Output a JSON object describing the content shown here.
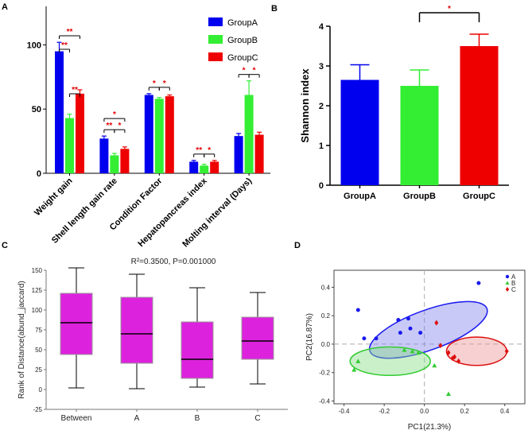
{
  "chart_data": [
    {
      "panel": "A",
      "type": "bar",
      "categories": [
        "Weight gain",
        "Shell length gain rate",
        "Condition Factor",
        "Hepatopancreas index",
        "Molting interval (Days)"
      ],
      "series": [
        {
          "name": "GroupA",
          "color": "#0000ee",
          "values": [
            95,
            27,
            61,
            9,
            29
          ],
          "errors": [
            7,
            2,
            1,
            1,
            2
          ]
        },
        {
          "name": "GroupB",
          "color": "#33ee33",
          "values": [
            43,
            14,
            58,
            6,
            61
          ],
          "errors": [
            3,
            1.5,
            1,
            1,
            11
          ]
        },
        {
          "name": "GroupC",
          "color": "#ee0000",
          "values": [
            62,
            19,
            60,
            9,
            30
          ],
          "errors": [
            3,
            1.5,
            1,
            1,
            2
          ]
        }
      ],
      "ylim": [
        0,
        130
      ],
      "yticks": [
        "0",
        "50",
        "100"
      ],
      "significance": [
        {
          "category": 0,
          "from": 0,
          "to": 1,
          "label": "**"
        },
        {
          "category": 0,
          "from": 1,
          "to": 2,
          "label": "**"
        },
        {
          "category": 0,
          "from": 0,
          "to": 2,
          "label": "**"
        },
        {
          "category": 1,
          "from": 0,
          "to": 1,
          "label": "**"
        },
        {
          "category": 1,
          "from": 1,
          "to": 2,
          "label": "*"
        },
        {
          "category": 1,
          "from": 0,
          "to": 2,
          "label": "*"
        },
        {
          "category": 2,
          "from": 0,
          "to": 1,
          "label": "*"
        },
        {
          "category": 2,
          "from": 1,
          "to": 2,
          "label": "*"
        },
        {
          "category": 3,
          "from": 0,
          "to": 1,
          "label": "**"
        },
        {
          "category": 3,
          "from": 1,
          "to": 2,
          "label": "*"
        },
        {
          "category": 4,
          "from": 0,
          "to": 1,
          "label": "*"
        },
        {
          "category": 4,
          "from": 1,
          "to": 2,
          "label": "*"
        }
      ],
      "legend_position": "top-right"
    },
    {
      "panel": "B",
      "type": "bar",
      "categories": [
        "GroupA",
        "GroupB",
        "GroupC"
      ],
      "values": [
        2.65,
        2.5,
        3.5
      ],
      "errors": [
        0.38,
        0.4,
        0.3
      ],
      "colors": [
        "#0000ee",
        "#33ee33",
        "#ee0000"
      ],
      "ylabel": "Shannon index",
      "ylim": [
        0,
        4
      ],
      "yticks": [
        "0",
        "1",
        "2",
        "3",
        "4"
      ],
      "significance": [
        {
          "from": 1,
          "to": 2,
          "label": "*"
        }
      ]
    },
    {
      "panel": "C",
      "type": "box",
      "title": "R²=0.3500, P=0.001000",
      "categories": [
        "Between",
        "A",
        "B",
        "C"
      ],
      "boxes": [
        {
          "min": 2,
          "q1": 44,
          "median": 84,
          "q3": 121,
          "max": 153
        },
        {
          "min": 1,
          "q1": 33,
          "median": 70,
          "q3": 116,
          "max": 145
        },
        {
          "min": 3,
          "q1": 14,
          "median": 38,
          "q3": 85,
          "max": 128
        },
        {
          "min": 7,
          "q1": 38,
          "median": 61,
          "q3": 91,
          "max": 122
        }
      ],
      "box_color": "#dd22dd",
      "ylabel": "Rank of Distance(abund_jaccard)",
      "ylim": [
        -25,
        150
      ],
      "yticks": [
        "-25",
        "0",
        "25",
        "50",
        "75",
        "100",
        "125",
        "150"
      ]
    },
    {
      "panel": "D",
      "type": "scatter",
      "xlabel": "PC1(21.3%)",
      "ylabel": "PC2(16.87%)",
      "xlim": [
        -0.45,
        0.5
      ],
      "ylim": [
        -0.42,
        0.52
      ],
      "xticks": [
        "-0.4",
        "-0.2",
        "0.0",
        "0.2",
        "0.4"
      ],
      "yticks": [
        "-0.4",
        "-0.2",
        "0.0",
        "0.2",
        "0.4"
      ],
      "series": [
        {
          "name": "A",
          "color": "#1a1aee",
          "marker": "circle",
          "points": [
            [
              -0.33,
              0.24
            ],
            [
              -0.3,
              0.04
            ],
            [
              -0.24,
              0.04
            ],
            [
              -0.08,
              0.18
            ],
            [
              -0.13,
              0.17
            ],
            [
              -0.07,
              0.11
            ],
            [
              -0.02,
              0.08
            ],
            [
              -0.12,
              0.08
            ],
            [
              0.27,
              0.43
            ]
          ]
        },
        {
          "name": "B",
          "color": "#33cc33",
          "marker": "triangle",
          "points": [
            [
              -0.35,
              -0.18
            ],
            [
              -0.33,
              -0.12
            ],
            [
              -0.06,
              -0.05
            ],
            [
              -0.03,
              -0.06
            ],
            [
              0.05,
              -0.15
            ],
            [
              0.12,
              -0.35
            ],
            [
              -0.1,
              -0.04
            ]
          ]
        },
        {
          "name": "C",
          "color": "#dd1111",
          "marker": "diamond",
          "points": [
            [
              0.06,
              0.15
            ],
            [
              0.12,
              -0.06
            ],
            [
              0.14,
              -0.1
            ],
            [
              0.17,
              -0.12
            ],
            [
              0.15,
              -0.09
            ],
            [
              0.08,
              -0.01
            ],
            [
              0.41,
              -0.05
            ]
          ]
        }
      ],
      "ellipses": [
        {
          "group": "A",
          "color": "#8888ee",
          "center": [
            0.02,
            0.1
          ],
          "rx": 0.31,
          "ry": 0.14,
          "angle_deg": 20
        },
        {
          "group": "B",
          "color": "#88dd88",
          "center": [
            -0.17,
            -0.12
          ],
          "rx": 0.2,
          "ry": 0.1,
          "angle_deg": 0
        },
        {
          "group": "C",
          "color": "#ee9999",
          "center": [
            0.26,
            -0.05
          ],
          "rx": 0.15,
          "ry": 0.1,
          "angle_deg": 0
        }
      ],
      "legend_position": "top-right"
    }
  ]
}
